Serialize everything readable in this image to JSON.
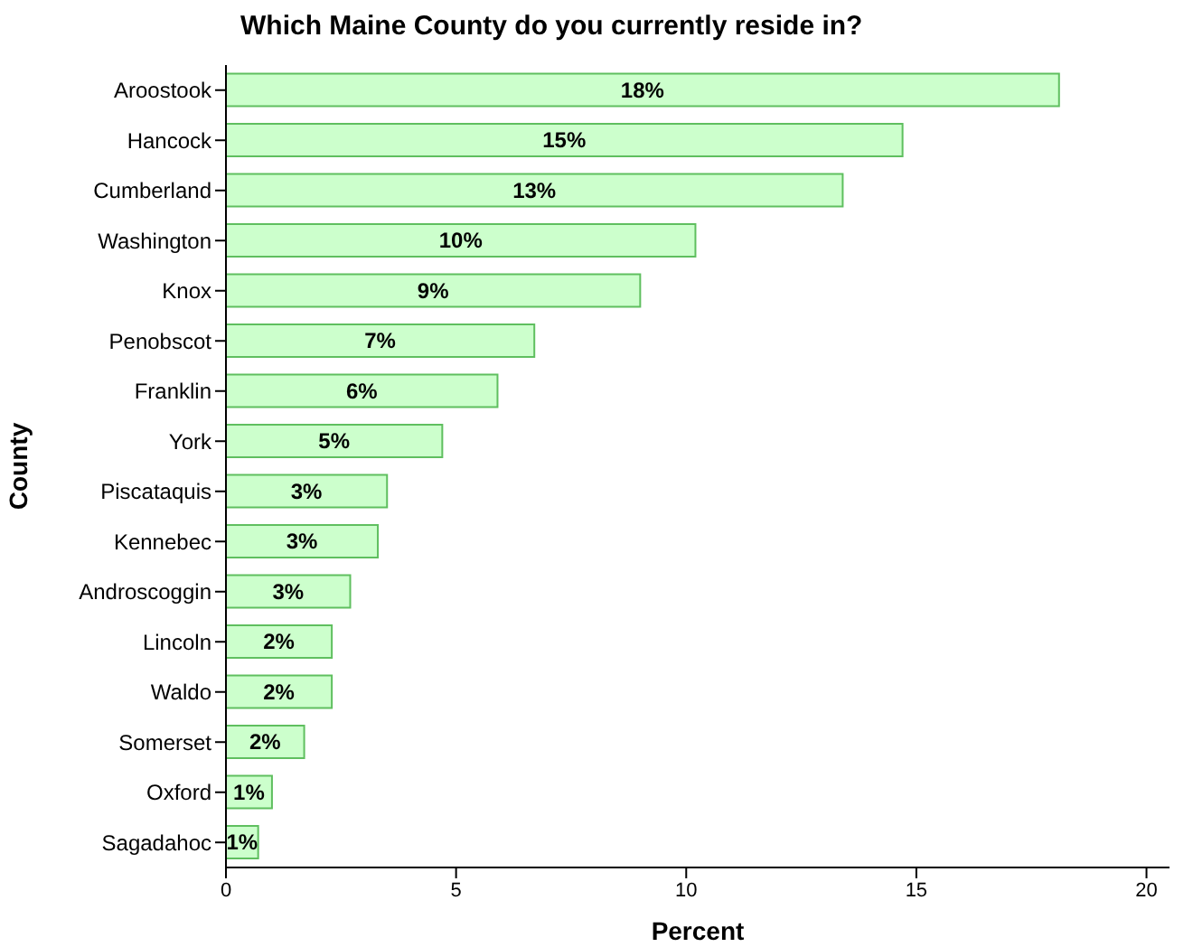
{
  "chart_data": {
    "type": "bar",
    "orientation": "horizontal",
    "title": "Which Maine County do you currently reside in?",
    "xlabel": "Percent",
    "ylabel": "County",
    "categories": [
      "Aroostook",
      "Hancock",
      "Cumberland",
      "Washington",
      "Knox",
      "Penobscot",
      "Franklin",
      "York",
      "Piscataquis",
      "Kennebec",
      "Androscoggin",
      "Lincoln",
      "Waldo",
      "Somerset",
      "Oxford",
      "Sagadahoc"
    ],
    "values": [
      18.1,
      14.7,
      13.4,
      10.2,
      9.0,
      6.7,
      5.9,
      4.7,
      3.5,
      3.3,
      2.7,
      2.3,
      2.3,
      1.7,
      1.0,
      0.7
    ],
    "value_labels": [
      "18%",
      "15%",
      "13%",
      "10%",
      "9%",
      "7%",
      "6%",
      "5%",
      "3%",
      "3%",
      "3%",
      "2%",
      "2%",
      "2%",
      "1%",
      "1%"
    ],
    "color": "#ccffcc",
    "xlim": [
      0,
      20.5
    ],
    "xticks": [
      0,
      5,
      10,
      15,
      20
    ],
    "grid": false
  }
}
